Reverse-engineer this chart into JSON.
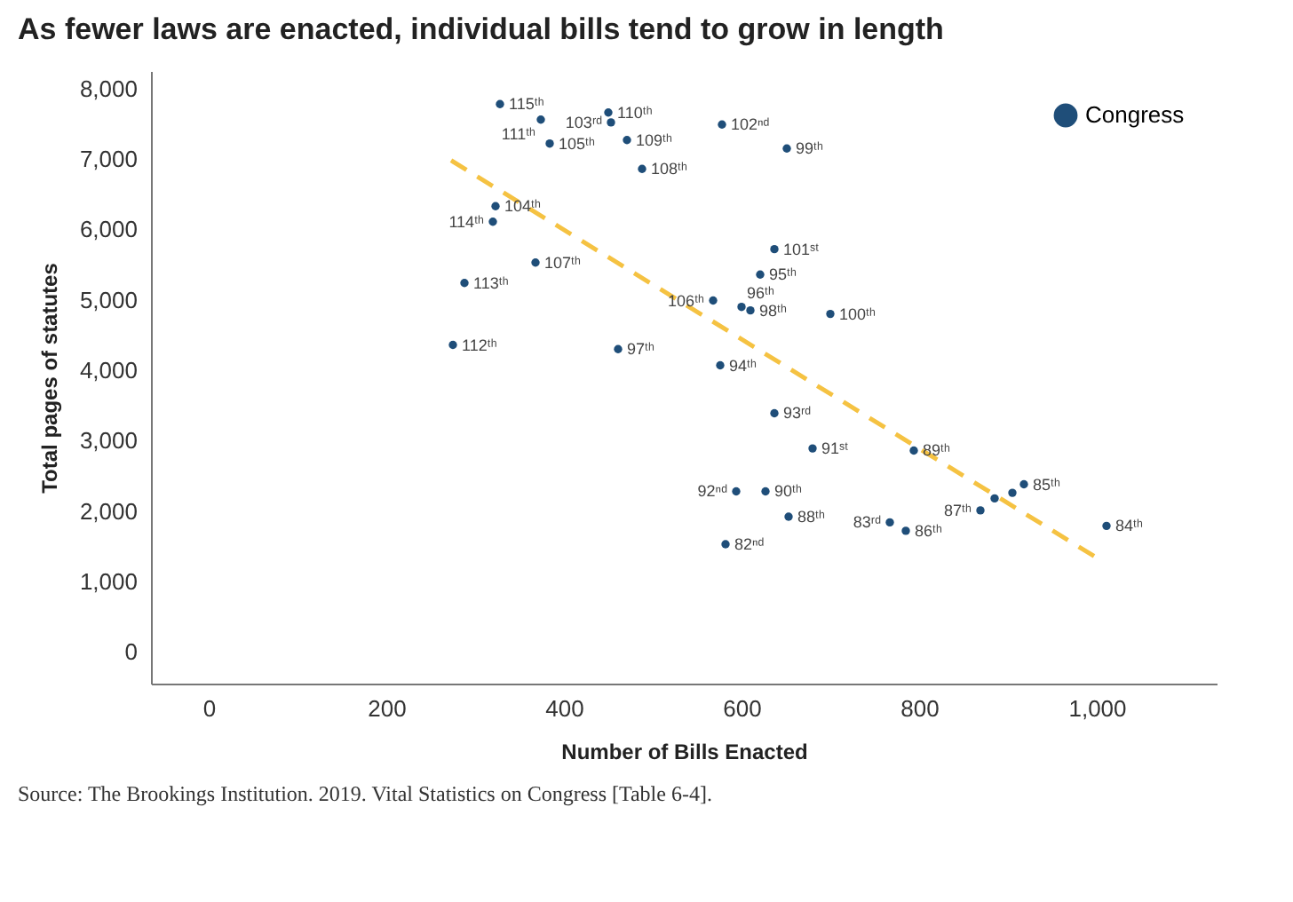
{
  "chart_data": {
    "type": "scatter",
    "title": "As fewer laws are enacted, individual bills tend to grow in length",
    "xlabel": "Number of Bills Enacted",
    "ylabel": "Total pages of statutes",
    "xlim": [
      -65,
      1135
    ],
    "xticks": [
      0,
      200,
      400,
      600,
      800,
      {
        "value": 1000,
        "label": "1,000"
      }
    ],
    "ylim": [
      -450,
      8250
    ],
    "yticks": [
      0,
      {
        "value": 1000,
        "label": "1,000"
      },
      {
        "value": 2000,
        "label": "2,000"
      },
      {
        "value": 3000,
        "label": "3,000"
      },
      {
        "value": 4000,
        "label": "4,000"
      },
      {
        "value": 5000,
        "label": "5,000"
      },
      {
        "value": 6000,
        "label": "6,000"
      },
      {
        "value": 7000,
        "label": "7,000"
      },
      {
        "value": 8000,
        "label": "8,000"
      }
    ],
    "grid": false,
    "legend": "top right",
    "series": [
      {
        "name": "Congress",
        "marker": "circle",
        "color": "#1f4e79",
        "x": [
          328,
          374,
          450,
          453,
          384,
          471,
          488,
          578,
          651,
          323,
          320,
          368,
          288,
          275,
          461,
          637,
          621,
          568,
          600,
          610,
          700,
          576,
          637,
          680,
          794,
          594,
          627,
          653,
          582,
          767,
          785,
          869,
          1011,
          918,
          885,
          905
        ],
        "values": [
          7780,
          7560,
          7660,
          7520,
          7220,
          7270,
          6860,
          7490,
          7150,
          6330,
          6110,
          5530,
          5240,
          4360,
          4300,
          5720,
          5360,
          4990,
          4900,
          4850,
          4800,
          4070,
          3390,
          2890,
          2860,
          2280,
          2280,
          1920,
          1530,
          1840,
          1720,
          2010,
          1790,
          2380,
          2180,
          2260
        ]
      },
      {
        "type": "line",
        "marker": "none",
        "color": "#f5c242",
        "line_style": "dashed",
        "x": [
          273,
          997
        ],
        "values": [
          6980,
          1360
        ]
      }
    ],
    "annotations": [
      {
        "text": "115ᵗʰ",
        "x": 328,
        "y": 7780
      },
      {
        "text": "111ᵗʰ",
        "x": 374,
        "y": 7560
      },
      {
        "text": "110ᵗʰ",
        "x": 450,
        "y": 7660
      },
      {
        "text": "103ʳᵈ",
        "x": 453,
        "y": 7520
      },
      {
        "text": "105ᵗʰ",
        "x": 384,
        "y": 7220
      },
      {
        "text": "109ᵗʰ",
        "x": 471,
        "y": 7270
      },
      {
        "text": "108ᵗʰ",
        "x": 488,
        "y": 6860
      },
      {
        "text": "102ⁿᵈ",
        "x": 578,
        "y": 7490
      },
      {
        "text": "99ᵗʰ",
        "x": 651,
        "y": 7150
      },
      {
        "text": "104ᵗʰ",
        "x": 323,
        "y": 6330
      },
      {
        "text": "114ᵗʰ",
        "x": 320,
        "y": 6110
      },
      {
        "text": "107ᵗʰ",
        "x": 368,
        "y": 5530
      },
      {
        "text": "113ᵗʰ",
        "x": 288,
        "y": 5240
      },
      {
        "text": "112ᵗʰ",
        "x": 275,
        "y": 4360
      },
      {
        "text": "97ᵗʰ",
        "x": 461,
        "y": 4300
      },
      {
        "text": "101ˢᵗ",
        "x": 637,
        "y": 5720
      },
      {
        "text": "95ᵗʰ",
        "x": 621,
        "y": 5360
      },
      {
        "text": "106ᵗʰ",
        "x": 568,
        "y": 4990
      },
      {
        "text": "96ᵗʰ",
        "x": 600,
        "y": 4900
      },
      {
        "text": "98ᵗʰ",
        "x": 610,
        "y": 4850
      },
      {
        "text": "100ᵗʰ",
        "x": 700,
        "y": 4800
      },
      {
        "text": "94ᵗʰ",
        "x": 576,
        "y": 4070
      },
      {
        "text": "93ʳᵈ",
        "x": 637,
        "y": 3390
      },
      {
        "text": "91ˢᵗ",
        "x": 680,
        "y": 2890
      },
      {
        "text": "89ᵗʰ",
        "x": 794,
        "y": 2860
      },
      {
        "text": "92ⁿᵈ",
        "x": 594,
        "y": 2280
      },
      {
        "text": "90ᵗʰ",
        "x": 627,
        "y": 2280
      },
      {
        "text": "88ᵗʰ",
        "x": 653,
        "y": 1920
      },
      {
        "text": "82ⁿᵈ",
        "x": 582,
        "y": 1530
      },
      {
        "text": "83ʳᵈ",
        "x": 767,
        "y": 1840
      },
      {
        "text": "86ᵗʰ",
        "x": 785,
        "y": 1720
      },
      {
        "text": "87ᵗʰ",
        "x": 869,
        "y": 2010
      },
      {
        "text": "84ᵗʰ",
        "x": 1011,
        "y": 1790
      },
      {
        "text": "85ᵗʰ",
        "x": 918,
        "y": 2380
      },
      "Source: The Brookings Institution. 2019. Vital Statistics on Congress [Table 6-4]."
    ]
  }
}
